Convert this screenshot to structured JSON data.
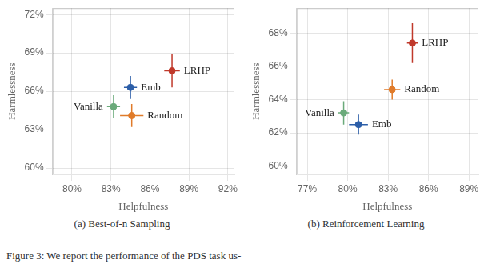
{
  "caption": "Figure 3: We report the performance of the PDS task us-",
  "chart_data": [
    {
      "type": "scatter",
      "subtitle": "(a) Best-of-n Sampling",
      "xlabel": "Helpfulness",
      "ylabel": "Harmlessness",
      "xlim": [
        0.785,
        0.925
      ],
      "ylim": [
        0.595,
        0.725
      ],
      "xticks": [
        {
          "value": 0.8,
          "label": "80%"
        },
        {
          "value": 0.83,
          "label": "83%"
        },
        {
          "value": 0.86,
          "label": "86%"
        },
        {
          "value": 0.89,
          "label": "89%"
        },
        {
          "value": 0.92,
          "label": "92%"
        }
      ],
      "yticks": [
        {
          "value": 0.6,
          "label": "60%"
        },
        {
          "value": 0.63,
          "label": "63%"
        },
        {
          "value": 0.66,
          "label": "66%"
        },
        {
          "value": 0.69,
          "label": "69%"
        },
        {
          "value": 0.72,
          "label": "72%"
        }
      ],
      "grid": true,
      "series": [
        {
          "name": "LRHP",
          "color": "#c0392b",
          "x": [
            0.877
          ],
          "values": [
            0.676
          ],
          "xerr": [
            0.006
          ],
          "yerr": [
            0.013
          ]
        },
        {
          "name": "Emb",
          "color": "#2c5ea8",
          "x": [
            0.845
          ],
          "values": [
            0.663
          ],
          "xerr": [
            0.005
          ],
          "yerr": [
            0.009
          ]
        },
        {
          "name": "Vanilla",
          "color": "#6aaa7a",
          "x": [
            0.832
          ],
          "values": [
            0.648
          ],
          "xerr": [
            0.005
          ],
          "yerr": [
            0.009
          ]
        },
        {
          "name": "Random",
          "color": "#e07b2a",
          "x": [
            0.846
          ],
          "values": [
            0.641
          ],
          "xerr": [
            0.009
          ],
          "yerr": [
            0.009
          ]
        }
      ]
    },
    {
      "type": "scatter",
      "subtitle": "(b) Reinforcement Learning",
      "xlabel": "Helpfulness",
      "ylabel": "Harmlessness",
      "xlim": [
        0.762,
        0.897
      ],
      "ylim": [
        0.595,
        0.695
      ],
      "xticks": [
        {
          "value": 0.77,
          "label": "77%"
        },
        {
          "value": 0.8,
          "label": "80%"
        },
        {
          "value": 0.83,
          "label": "83%"
        },
        {
          "value": 0.86,
          "label": "86%"
        },
        {
          "value": 0.89,
          "label": "89%"
        }
      ],
      "yticks": [
        {
          "value": 0.6,
          "label": "60%"
        },
        {
          "value": 0.62,
          "label": "62%"
        },
        {
          "value": 0.64,
          "label": "64%"
        },
        {
          "value": 0.66,
          "label": "66%"
        },
        {
          "value": 0.68,
          "label": "68%"
        }
      ],
      "grid": true,
      "series": [
        {
          "name": "LRHP",
          "color": "#c0392b",
          "x": [
            0.848
          ],
          "values": [
            0.674
          ],
          "xerr": [
            0.004
          ],
          "yerr": [
            0.012
          ]
        },
        {
          "name": "Random",
          "color": "#e07b2a",
          "x": [
            0.833
          ],
          "values": [
            0.646
          ],
          "xerr": [
            0.006
          ],
          "yerr": [
            0.006
          ]
        },
        {
          "name": "Vanilla",
          "color": "#6aaa7a",
          "x": [
            0.797
          ],
          "values": [
            0.632
          ],
          "xerr": [
            0.004
          ],
          "yerr": [
            0.007
          ]
        },
        {
          "name": "Emb",
          "color": "#2c5ea8",
          "x": [
            0.808
          ],
          "values": [
            0.625
          ],
          "xerr": [
            0.007
          ],
          "yerr": [
            0.006
          ]
        }
      ]
    }
  ]
}
